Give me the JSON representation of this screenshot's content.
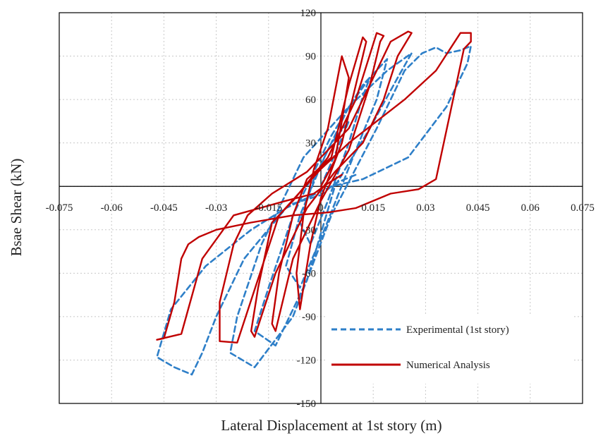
{
  "chart_data": {
    "type": "line",
    "title": "",
    "xlabel": "Lateral Displacement at 1st story (m)",
    "ylabel": "Bsae Shear (kN)",
    "xlim": [
      -0.075,
      0.075
    ],
    "ylim": [
      -150,
      120
    ],
    "x_ticks": [
      -0.075,
      -0.06,
      -0.045,
      -0.03,
      -0.015,
      0,
      0.015,
      0.03,
      0.045,
      0.06,
      0.075
    ],
    "x_tick_labels": [
      "-0.075",
      "-0.06",
      "-0.045",
      "-0.03",
      "-0.015",
      "0",
      "0.015",
      "0.03",
      "0.045",
      "0.06",
      "0.075"
    ],
    "y_ticks": [
      -150,
      -120,
      -90,
      -60,
      -30,
      0,
      30,
      60,
      90,
      120
    ],
    "y_tick_labels": [
      "-150",
      "-120",
      "-90",
      "-60",
      "-30",
      "0",
      "30",
      "60",
      "90",
      "120"
    ],
    "grid": true,
    "legend_position": "bottom-right",
    "series": [
      {
        "name": "Experimental (1st story)",
        "color": "#2E7FC8",
        "style": "dashed",
        "x": [
          0,
          0.004,
          0.008,
          0.003,
          -0.002,
          -0.006,
          -0.003,
          0.002,
          0.008,
          0.012,
          0.014,
          0.008,
          0.001,
          -0.006,
          -0.01,
          -0.006,
          0.001,
          0.01,
          0.016,
          0.019,
          0.012,
          0.003,
          -0.008,
          -0.015,
          -0.019,
          -0.013,
          -0.004,
          0.004,
          0.014,
          0.022,
          0.026,
          0.019,
          0.008,
          -0.005,
          -0.017,
          -0.024,
          -0.026,
          -0.019,
          -0.008,
          0.003,
          0.016,
          0.024,
          0.029,
          0.033,
          0.036,
          0.04,
          0.043,
          0.042,
          0.036,
          0.025,
          0.012,
          0.003,
          -0.01,
          -0.022,
          -0.03,
          -0.034,
          -0.037,
          -0.042,
          -0.047,
          -0.043,
          -0.033,
          -0.02,
          -0.008,
          0,
          0.004,
          0.01
        ],
        "y": [
          0,
          22,
          45,
          30,
          5,
          -25,
          -40,
          -10,
          30,
          62,
          75,
          55,
          20,
          -20,
          -55,
          -70,
          -30,
          25,
          60,
          88,
          70,
          35,
          -20,
          -70,
          -100,
          -110,
          -65,
          0,
          40,
          75,
          92,
          80,
          55,
          20,
          -40,
          -90,
          -115,
          -125,
          -90,
          -20,
          40,
          80,
          92,
          96,
          92,
          94,
          97,
          85,
          55,
          20,
          5,
          0,
          -15,
          -50,
          -90,
          -115,
          -130,
          -125,
          -118,
          -85,
          -55,
          -30,
          -12,
          -6,
          2,
          8
        ]
      },
      {
        "name": "Numerical Analysis",
        "color": "#C00000",
        "style": "solid",
        "x": [
          0,
          0.004,
          0.006,
          0.008,
          0.006,
          0.002,
          -0.002,
          -0.005,
          -0.007,
          -0.006,
          -0.003,
          0,
          0.006,
          0.01,
          0.013,
          0.012,
          0.008,
          0.003,
          -0.004,
          -0.008,
          -0.012,
          -0.014,
          -0.013,
          -0.008,
          0,
          0.008,
          0.014,
          0.017,
          0.018,
          0.016,
          0.01,
          0.002,
          -0.008,
          -0.014,
          -0.018,
          -0.02,
          -0.019,
          -0.013,
          -0.004,
          0.004,
          0.012,
          0.018,
          0.022,
          0.026,
          0.025,
          0.02,
          0.008,
          -0.004,
          -0.014,
          -0.021,
          -0.025,
          -0.029,
          -0.029,
          -0.024,
          -0.012,
          0,
          0.008,
          0.016,
          0.024,
          0.033,
          0.04,
          0.043,
          0.043,
          0.041,
          0.033,
          0.028,
          0.02,
          0.01,
          0.002,
          -0.008,
          -0.02,
          -0.03,
          -0.035,
          -0.038,
          -0.04,
          -0.042,
          -0.045,
          -0.047,
          -0.04,
          -0.034,
          -0.025,
          -0.01,
          -0.002,
          0.002,
          0.006
        ],
        "y": [
          0,
          18,
          45,
          75,
          90,
          40,
          12,
          -20,
          -60,
          -85,
          -40,
          -8,
          30,
          70,
          100,
          103,
          70,
          20,
          5,
          -20,
          -60,
          -95,
          -100,
          -50,
          -10,
          25,
          70,
          100,
          104,
          106,
          60,
          20,
          -10,
          -25,
          -70,
          -100,
          -104,
          -60,
          -15,
          10,
          30,
          60,
          90,
          106,
          107,
          100,
          40,
          10,
          -5,
          -20,
          -40,
          -80,
          -107,
          -108,
          -20,
          12,
          30,
          45,
          60,
          80,
          106,
          106,
          100,
          95,
          5,
          -2,
          -5,
          -15,
          -18,
          -20,
          -25,
          -30,
          -35,
          -40,
          -50,
          -80,
          -105,
          -106,
          -102,
          -50,
          -20,
          -10,
          -5,
          2,
          8
        ]
      }
    ]
  }
}
